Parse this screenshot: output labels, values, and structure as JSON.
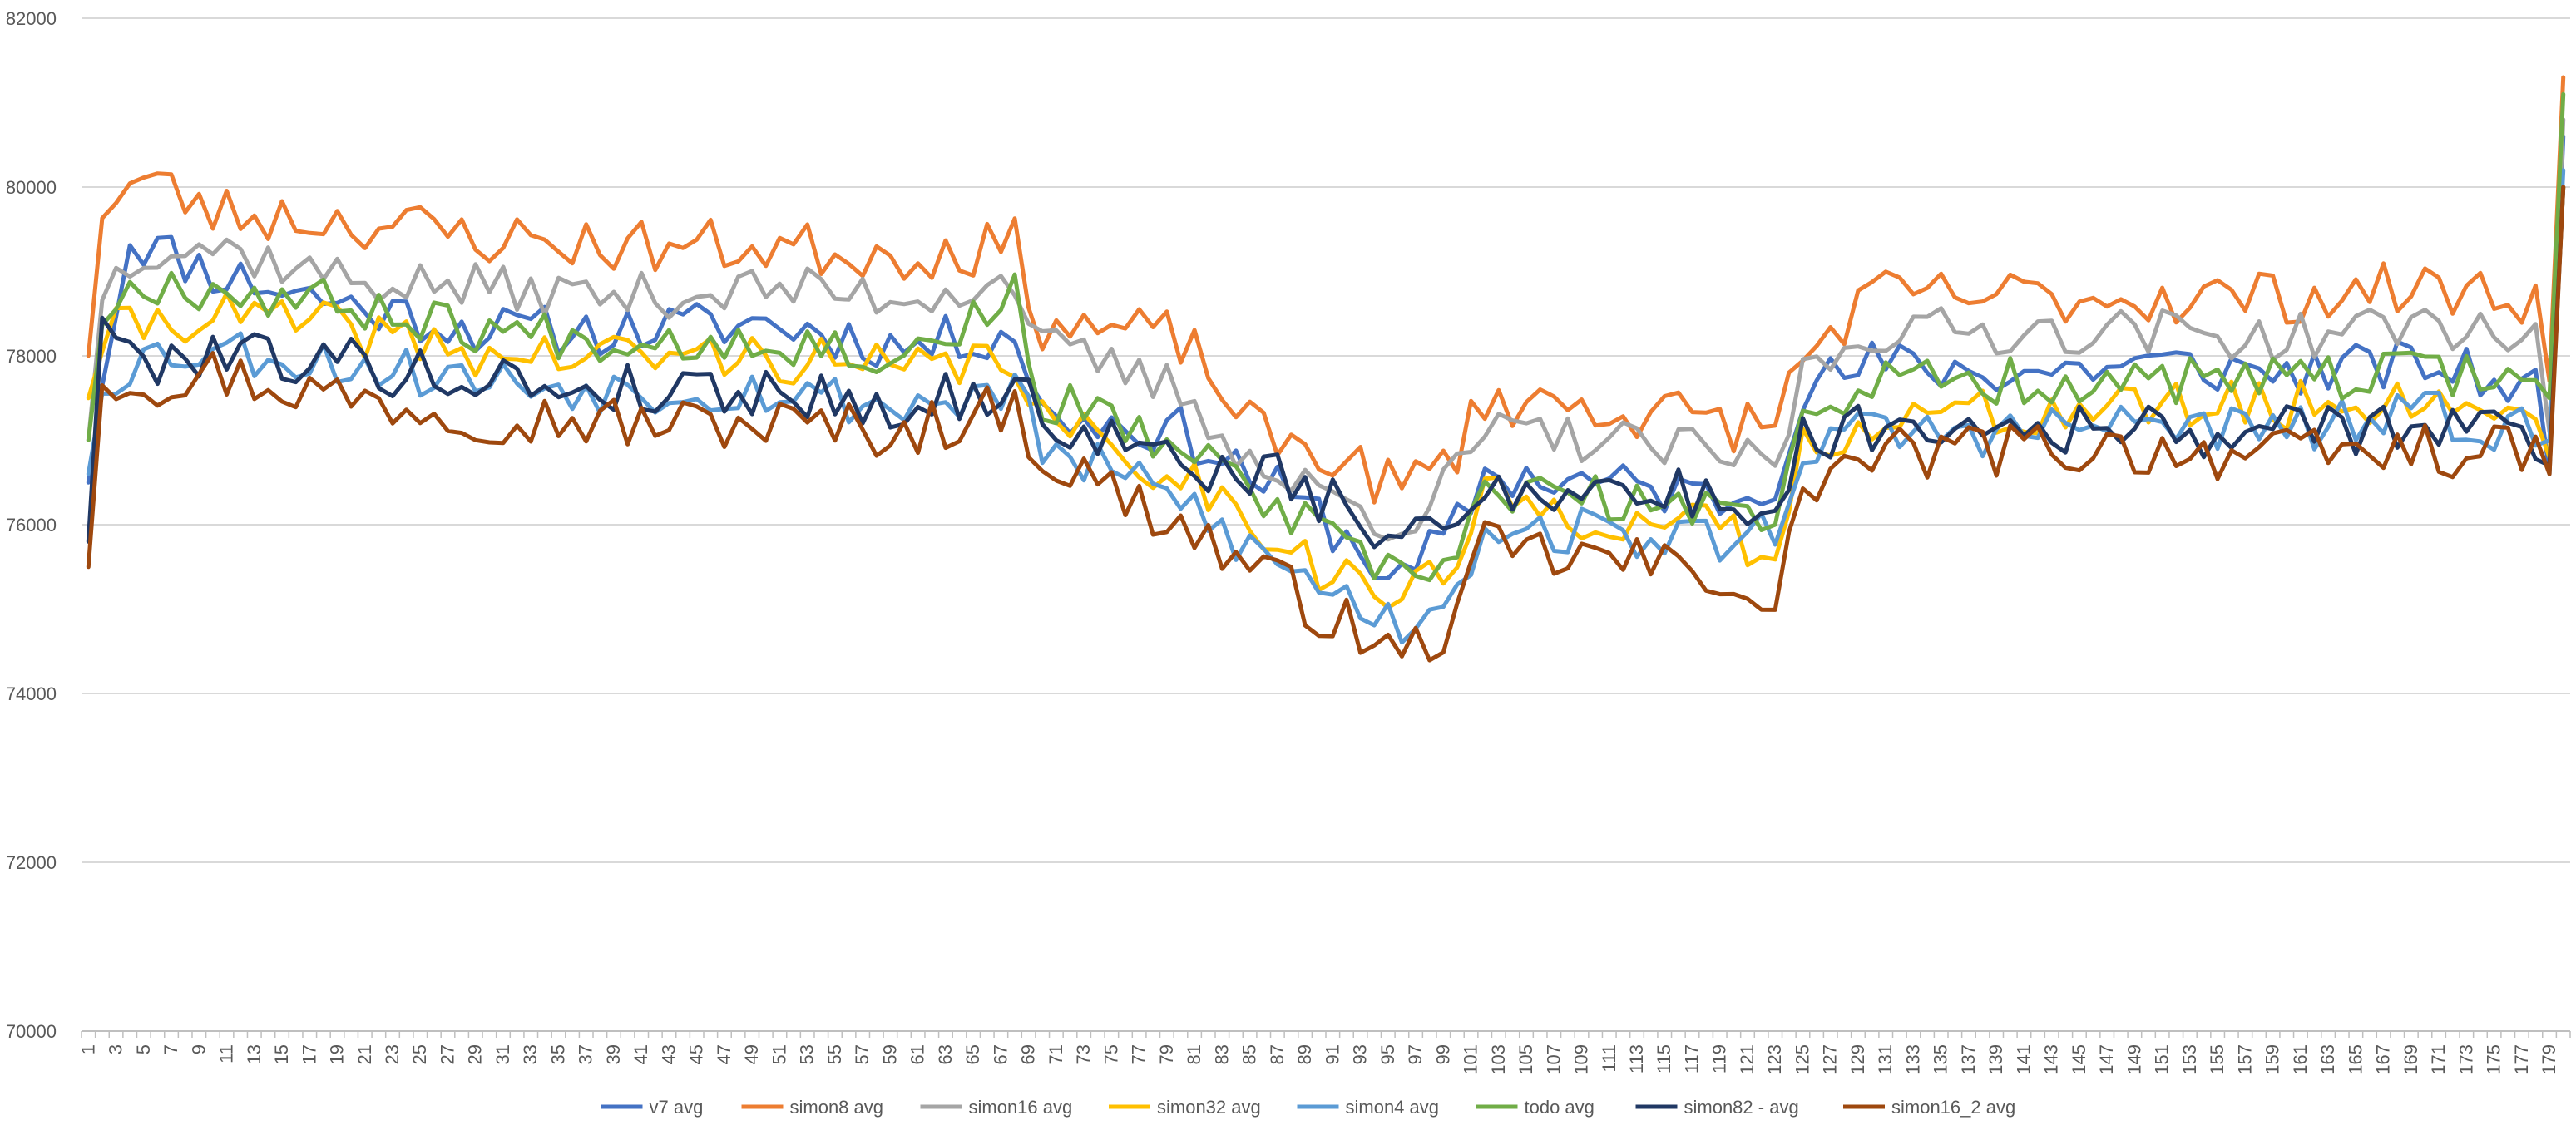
{
  "chart_data": {
    "type": "line",
    "title": "",
    "xlabel": "",
    "ylabel": "",
    "ylim": [
      70000,
      82000
    ],
    "yticks": [
      70000,
      72000,
      74000,
      76000,
      78000,
      80000,
      82000
    ],
    "ytick_labels": [
      "70000",
      "72000",
      "74000",
      "76000",
      "78000",
      "80000",
      "82000"
    ],
    "x": {
      "start": 1,
      "end": 180
    },
    "legend_position": "bottom",
    "grid": true,
    "series": [
      {
        "name": "v7 avg",
        "color": "#4472C4",
        "anchors": [
          [
            1,
            76500
          ],
          [
            2,
            77800
          ],
          [
            4,
            79400
          ],
          [
            10,
            79000
          ],
          [
            20,
            78600
          ],
          [
            30,
            78300
          ],
          [
            40,
            78300
          ],
          [
            50,
            78400
          ],
          [
            60,
            78100
          ],
          [
            68,
            78300
          ],
          [
            70,
            77300
          ],
          [
            80,
            77100
          ],
          [
            86,
            76500
          ],
          [
            90,
            76100
          ],
          [
            96,
            75300
          ],
          [
            100,
            76000
          ],
          [
            102,
            76600
          ],
          [
            110,
            76500
          ],
          [
            120,
            76300
          ],
          [
            123,
            76600
          ],
          [
            125,
            77600
          ],
          [
            130,
            77900
          ],
          [
            140,
            77800
          ],
          [
            150,
            77900
          ],
          [
            160,
            77800
          ],
          [
            170,
            77900
          ],
          [
            178,
            77600
          ],
          [
            179,
            76600
          ],
          [
            180,
            80600
          ]
        ],
        "amp": 300,
        "seed": 11
      },
      {
        "name": "simon8 avg",
        "color": "#ED7D31",
        "anchors": [
          [
            1,
            78000
          ],
          [
            2,
            79800
          ],
          [
            5,
            80100
          ],
          [
            10,
            79700
          ],
          [
            20,
            79600
          ],
          [
            30,
            79400
          ],
          [
            40,
            79300
          ],
          [
            50,
            79300
          ],
          [
            60,
            79200
          ],
          [
            68,
            79300
          ],
          [
            70,
            78400
          ],
          [
            80,
            78200
          ],
          [
            86,
            77000
          ],
          [
            90,
            76900
          ],
          [
            96,
            76400
          ],
          [
            100,
            76900
          ],
          [
            102,
            77500
          ],
          [
            110,
            77400
          ],
          [
            120,
            77200
          ],
          [
            123,
            77200
          ],
          [
            125,
            78000
          ],
          [
            130,
            78700
          ],
          [
            140,
            78700
          ],
          [
            150,
            78700
          ],
          [
            160,
            78700
          ],
          [
            170,
            78800
          ],
          [
            178,
            78700
          ],
          [
            179,
            77700
          ],
          [
            180,
            81300
          ]
        ],
        "amp": 330,
        "seed": 23
      },
      {
        "name": "simon16 avg",
        "color": "#A5A5A5",
        "anchors": [
          [
            1,
            77000
          ],
          [
            2,
            78800
          ],
          [
            5,
            79300
          ],
          [
            10,
            79300
          ],
          [
            20,
            78900
          ],
          [
            30,
            78800
          ],
          [
            40,
            78700
          ],
          [
            50,
            78800
          ],
          [
            60,
            78700
          ],
          [
            68,
            78900
          ],
          [
            70,
            78100
          ],
          [
            80,
            77600
          ],
          [
            86,
            76600
          ],
          [
            90,
            76400
          ],
          [
            96,
            76000
          ],
          [
            100,
            76600
          ],
          [
            102,
            77100
          ],
          [
            110,
            77000
          ],
          [
            120,
            76800
          ],
          [
            123,
            76700
          ],
          [
            125,
            77800
          ],
          [
            130,
            78300
          ],
          [
            140,
            78300
          ],
          [
            150,
            78300
          ],
          [
            160,
            78200
          ],
          [
            170,
            78400
          ],
          [
            178,
            78200
          ],
          [
            179,
            77100
          ],
          [
            180,
            80800
          ]
        ],
        "amp": 280,
        "seed": 37
      },
      {
        "name": "simon32 avg",
        "color": "#FFC000",
        "anchors": [
          [
            1,
            77500
          ],
          [
            2,
            78200
          ],
          [
            5,
            78400
          ],
          [
            10,
            78500
          ],
          [
            20,
            78300
          ],
          [
            30,
            78000
          ],
          [
            40,
            78000
          ],
          [
            50,
            78000
          ],
          [
            60,
            77800
          ],
          [
            68,
            78000
          ],
          [
            70,
            77200
          ],
          [
            80,
            76600
          ],
          [
            86,
            76000
          ],
          [
            90,
            75500
          ],
          [
            96,
            75100
          ],
          [
            100,
            75600
          ],
          [
            102,
            76300
          ],
          [
            110,
            76100
          ],
          [
            120,
            75900
          ],
          [
            123,
            75500
          ],
          [
            125,
            76900
          ],
          [
            130,
            77300
          ],
          [
            140,
            77300
          ],
          [
            150,
            77400
          ],
          [
            160,
            77400
          ],
          [
            170,
            77500
          ],
          [
            178,
            77300
          ],
          [
            179,
            76800
          ],
          [
            180,
            80000
          ]
        ],
        "amp": 300,
        "seed": 41
      },
      {
        "name": "simon4 avg",
        "color": "#5B9BD5",
        "anchors": [
          [
            1,
            76600
          ],
          [
            2,
            77700
          ],
          [
            5,
            78000
          ],
          [
            10,
            78100
          ],
          [
            20,
            77900
          ],
          [
            30,
            77700
          ],
          [
            40,
            77600
          ],
          [
            50,
            77600
          ],
          [
            60,
            77400
          ],
          [
            68,
            77600
          ],
          [
            70,
            76900
          ],
          [
            80,
            76300
          ],
          [
            86,
            75600
          ],
          [
            90,
            75300
          ],
          [
            96,
            74800
          ],
          [
            100,
            75300
          ],
          [
            102,
            76000
          ],
          [
            110,
            75900
          ],
          [
            120,
            75800
          ],
          [
            123,
            76000
          ],
          [
            125,
            76900
          ],
          [
            130,
            77100
          ],
          [
            140,
            77100
          ],
          [
            150,
            77200
          ],
          [
            160,
            77100
          ],
          [
            170,
            77300
          ],
          [
            178,
            77100
          ],
          [
            179,
            77000
          ],
          [
            180,
            80200
          ]
        ],
        "amp": 300,
        "seed": 53
      },
      {
        "name": "todo avg",
        "color": "#70AD47",
        "anchors": [
          [
            1,
            77000
          ],
          [
            2,
            78500
          ],
          [
            5,
            78900
          ],
          [
            10,
            78800
          ],
          [
            20,
            78600
          ],
          [
            30,
            78300
          ],
          [
            40,
            78200
          ],
          [
            50,
            78200
          ],
          [
            60,
            78000
          ],
          [
            68,
            78700
          ],
          [
            70,
            77500
          ],
          [
            80,
            76900
          ],
          [
            86,
            76300
          ],
          [
            90,
            75900
          ],
          [
            96,
            75300
          ],
          [
            100,
            75700
          ],
          [
            102,
            76400
          ],
          [
            110,
            76300
          ],
          [
            120,
            76100
          ],
          [
            123,
            76200
          ],
          [
            125,
            77300
          ],
          [
            130,
            77700
          ],
          [
            140,
            77700
          ],
          [
            150,
            77700
          ],
          [
            160,
            77700
          ],
          [
            170,
            77800
          ],
          [
            178,
            77800
          ],
          [
            179,
            77500
          ],
          [
            180,
            81100
          ]
        ],
        "amp": 280,
        "seed": 67
      },
      {
        "name": "simon82 - avg",
        "color": "#203864",
        "anchors": [
          [
            1,
            75800
          ],
          [
            2,
            78600
          ],
          [
            4,
            77900
          ],
          [
            10,
            78100
          ],
          [
            20,
            77900
          ],
          [
            30,
            77700
          ],
          [
            40,
            77600
          ],
          [
            50,
            77600
          ],
          [
            60,
            77400
          ],
          [
            68,
            77600
          ],
          [
            70,
            77300
          ],
          [
            80,
            76700
          ],
          [
            86,
            76600
          ],
          [
            90,
            76300
          ],
          [
            96,
            75800
          ],
          [
            100,
            76000
          ],
          [
            102,
            76500
          ],
          [
            110,
            76400
          ],
          [
            120,
            76300
          ],
          [
            123,
            76100
          ],
          [
            125,
            77000
          ],
          [
            130,
            77200
          ],
          [
            140,
            77200
          ],
          [
            150,
            77100
          ],
          [
            160,
            77100
          ],
          [
            170,
            77200
          ],
          [
            178,
            77000
          ],
          [
            179,
            76700
          ],
          [
            180,
            80000
          ]
        ],
        "amp": 320,
        "seed": 79
      },
      {
        "name": "simon16_2 avg",
        "color": "#9E480E",
        "anchors": [
          [
            1,
            75500
          ],
          [
            2,
            77800
          ],
          [
            5,
            77700
          ],
          [
            10,
            77800
          ],
          [
            20,
            77500
          ],
          [
            30,
            77300
          ],
          [
            40,
            77200
          ],
          [
            50,
            77200
          ],
          [
            60,
            77100
          ],
          [
            68,
            77400
          ],
          [
            70,
            76800
          ],
          [
            80,
            76000
          ],
          [
            86,
            75400
          ],
          [
            90,
            75000
          ],
          [
            96,
            74400
          ],
          [
            100,
            74900
          ],
          [
            102,
            75700
          ],
          [
            110,
            75600
          ],
          [
            120,
            75400
          ],
          [
            123,
            74800
          ],
          [
            125,
            76500
          ],
          [
            130,
            76800
          ],
          [
            140,
            76900
          ],
          [
            150,
            76900
          ],
          [
            160,
            76800
          ],
          [
            170,
            76900
          ],
          [
            178,
            76800
          ],
          [
            179,
            76600
          ],
          [
            180,
            80000
          ]
        ],
        "amp": 330,
        "seed": 97
      }
    ]
  }
}
